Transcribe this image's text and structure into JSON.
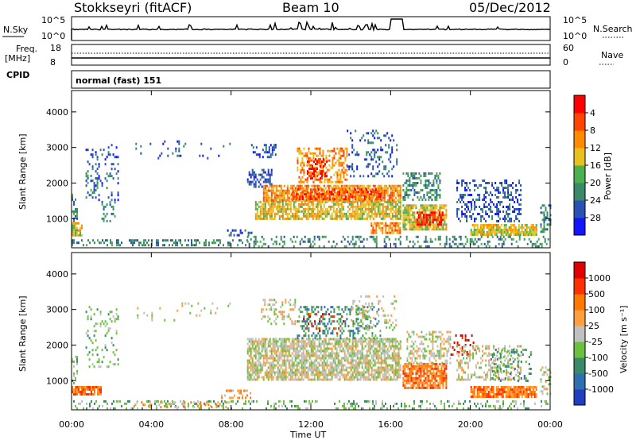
{
  "header": {
    "station": "Stokkseyri (fitACF)",
    "beam": "Beam 10",
    "date": "05/Dec/2012"
  },
  "strips": {
    "nsky_label": "N.Sky",
    "nsearch_label": "N.Search",
    "nsky_ticks": [
      "10^5",
      "10^0"
    ],
    "nsearch_ticks": [
      "10^5",
      "10^0"
    ],
    "freq_label_1": "Freq.",
    "freq_label_2": "[MHz]",
    "freq_ticks": [
      "18",
      "8"
    ],
    "nave_label": "Nave",
    "nave_ticks": [
      "60",
      "0"
    ],
    "cpid_label": "CPID",
    "cpid_value": "normal (fast) 151"
  },
  "chart_data": [
    {
      "type": "heatmap",
      "title": "Power",
      "xlabel": "Time UT",
      "ylabel": "Slant Range [km]",
      "x_ticks": [
        "00:00",
        "04:00",
        "08:00",
        "12:00",
        "16:00",
        "20:00",
        "00:00"
      ],
      "x_range_hours": [
        0,
        24
      ],
      "y_ticks": [
        1000,
        2000,
        3000,
        4000
      ],
      "y_range_km": [
        180,
        4600
      ],
      "colorbar": {
        "label": "Power [dB]",
        "ticks": [
          "4",
          "8",
          "12",
          "16",
          "20",
          "24",
          "28"
        ],
        "colors": [
          "#1414ff",
          "#2a52b4",
          "#3a8a6a",
          "#4caf50",
          "#e8c020",
          "#ff8c00",
          "#ff4500",
          "#ff0000"
        ]
      },
      "regions": [
        {
          "t0": 0.0,
          "t1": 0.5,
          "r0": 550,
          "r1": 900,
          "level": 4,
          "density": 0.85
        },
        {
          "t0": 0.0,
          "t1": 0.3,
          "r0": 900,
          "r1": 1700,
          "level": 2,
          "density": 0.35
        },
        {
          "t0": 0.7,
          "t1": 2.3,
          "r0": 1400,
          "r1": 3100,
          "level": 1,
          "density": 0.2
        },
        {
          "t0": 0.7,
          "t1": 1.3,
          "r0": 1600,
          "r1": 2300,
          "level": 2,
          "density": 0.3
        },
        {
          "t0": 1.5,
          "t1": 2.2,
          "r0": 900,
          "r1": 1500,
          "level": 2,
          "density": 0.25
        },
        {
          "t0": 0.0,
          "t1": 8.8,
          "r0": 220,
          "r1": 420,
          "level": 2,
          "density": 0.4
        },
        {
          "t0": 3.2,
          "t1": 8.0,
          "r0": 2700,
          "r1": 3200,
          "level": 1,
          "density": 0.06
        },
        {
          "t0": 7.8,
          "t1": 9.0,
          "r0": 500,
          "r1": 700,
          "level": 1,
          "density": 0.35
        },
        {
          "t0": 8.8,
          "t1": 10.0,
          "r0": 1900,
          "r1": 2400,
          "level": 1,
          "density": 0.45
        },
        {
          "t0": 9.0,
          "t1": 10.2,
          "r0": 2700,
          "r1": 3100,
          "level": 1,
          "density": 0.45
        },
        {
          "t0": 9.2,
          "t1": 16.5,
          "r0": 1000,
          "r1": 1500,
          "level": 4,
          "density": 0.75
        },
        {
          "t0": 9.6,
          "t1": 16.5,
          "r0": 1500,
          "r1": 1950,
          "level": 5,
          "density": 0.8
        },
        {
          "t0": 11.0,
          "t1": 15.5,
          "r0": 1550,
          "r1": 1850,
          "level": 6,
          "density": 0.55
        },
        {
          "t0": 11.3,
          "t1": 13.8,
          "r0": 2000,
          "r1": 3000,
          "level": 5,
          "density": 0.45
        },
        {
          "t0": 11.8,
          "t1": 12.8,
          "r0": 2100,
          "r1": 2700,
          "level": 7,
          "density": 0.35
        },
        {
          "t0": 13.8,
          "t1": 16.3,
          "r0": 2200,
          "r1": 3500,
          "level": 1,
          "density": 0.2
        },
        {
          "t0": 15.0,
          "t1": 16.5,
          "r0": 600,
          "r1": 900,
          "level": 5,
          "density": 0.7
        },
        {
          "t0": 16.6,
          "t1": 18.8,
          "r0": 700,
          "r1": 1400,
          "level": 4,
          "density": 0.8
        },
        {
          "t0": 17.3,
          "t1": 18.6,
          "r0": 800,
          "r1": 1200,
          "level": 7,
          "density": 0.55
        },
        {
          "t0": 16.6,
          "t1": 18.5,
          "r0": 1500,
          "r1": 2300,
          "level": 2,
          "density": 0.5
        },
        {
          "t0": 19.3,
          "t1": 22.5,
          "r0": 900,
          "r1": 2100,
          "level": 1,
          "density": 0.35
        },
        {
          "t0": 20.0,
          "t1": 23.3,
          "r0": 550,
          "r1": 850,
          "level": 4,
          "density": 0.8
        },
        {
          "t0": 23.5,
          "t1": 24.0,
          "r0": 600,
          "r1": 1400,
          "level": 2,
          "density": 0.45
        },
        {
          "t0": 8.8,
          "t1": 24.0,
          "r0": 220,
          "r1": 520,
          "level": 2,
          "density": 0.25
        }
      ]
    },
    {
      "type": "heatmap",
      "title": "Velocity",
      "xlabel": "Time UT",
      "ylabel": "Slant Range [km]",
      "x_ticks": [
        "00:00",
        "04:00",
        "08:00",
        "12:00",
        "16:00",
        "20:00",
        "00:00"
      ],
      "x_range_hours": [
        0,
        24
      ],
      "y_ticks": [
        1000,
        2000,
        3000,
        4000
      ],
      "y_range_km": [
        180,
        4600
      ],
      "colorbar": {
        "label": "Velocity [m s⁻¹]",
        "ticks": [
          "1000",
          "500",
          "100",
          "25",
          "-25",
          "-100",
          "-500",
          "-1000"
        ],
        "colors": [
          "#1f3fbf",
          "#2e6fb0",
          "#3a8a6a",
          "#6cc040",
          "#c0c0c0",
          "#ffa040",
          "#ff7800",
          "#ff3000",
          "#e00000"
        ]
      },
      "regions": [
        {
          "t0": 0.0,
          "t1": 1.5,
          "r0": 600,
          "r1": 850,
          "level": 6,
          "density": 0.85
        },
        {
          "t0": 0.0,
          "t1": 0.3,
          "r0": 900,
          "r1": 1700,
          "level": 3,
          "density": 0.3
        },
        {
          "t0": 0.7,
          "t1": 2.3,
          "r0": 1400,
          "r1": 3100,
          "level": 3,
          "density": 0.15
        },
        {
          "t0": 0.0,
          "t1": 24.0,
          "r0": 220,
          "r1": 450,
          "level": 3,
          "density": 0.25
        },
        {
          "t0": 3.0,
          "t1": 8.0,
          "r0": 220,
          "r1": 420,
          "level": 5,
          "density": 0.25
        },
        {
          "t0": 3.2,
          "t1": 8.0,
          "r0": 2700,
          "r1": 3200,
          "level": 4,
          "density": 0.05
        },
        {
          "t0": 7.5,
          "t1": 9.0,
          "r0": 500,
          "r1": 750,
          "level": 5,
          "density": 0.35
        },
        {
          "t0": 8.8,
          "t1": 16.5,
          "r0": 1000,
          "r1": 2200,
          "level": 4,
          "density": 0.75
        },
        {
          "t0": 9.5,
          "t1": 11.2,
          "r0": 2600,
          "r1": 3300,
          "level": 4,
          "density": 0.3
        },
        {
          "t0": 11.3,
          "t1": 15.5,
          "r0": 2200,
          "r1": 3100,
          "level": 2,
          "density": 0.3
        },
        {
          "t0": 11.6,
          "t1": 13.6,
          "r0": 2300,
          "r1": 2900,
          "level": 7,
          "density": 0.15
        },
        {
          "t0": 14.0,
          "t1": 16.3,
          "r0": 2400,
          "r1": 3400,
          "level": 4,
          "density": 0.2
        },
        {
          "t0": 16.6,
          "t1": 18.8,
          "r0": 800,
          "r1": 1500,
          "level": 6,
          "density": 0.8
        },
        {
          "t0": 16.8,
          "t1": 19.0,
          "r0": 1500,
          "r1": 2400,
          "level": 4,
          "density": 0.45
        },
        {
          "t0": 19.0,
          "t1": 20.2,
          "r0": 1700,
          "r1": 2300,
          "level": 8,
          "density": 0.25
        },
        {
          "t0": 19.3,
          "t1": 22.5,
          "r0": 1000,
          "r1": 2000,
          "level": 4,
          "density": 0.35
        },
        {
          "t0": 20.0,
          "t1": 23.3,
          "r0": 550,
          "r1": 850,
          "level": 6,
          "density": 0.85
        },
        {
          "t0": 21.0,
          "t1": 23.0,
          "r0": 1000,
          "r1": 1900,
          "level": 2,
          "density": 0.2
        },
        {
          "t0": 23.5,
          "t1": 24.0,
          "r0": 600,
          "r1": 1400,
          "level": 4,
          "density": 0.4
        }
      ]
    }
  ]
}
